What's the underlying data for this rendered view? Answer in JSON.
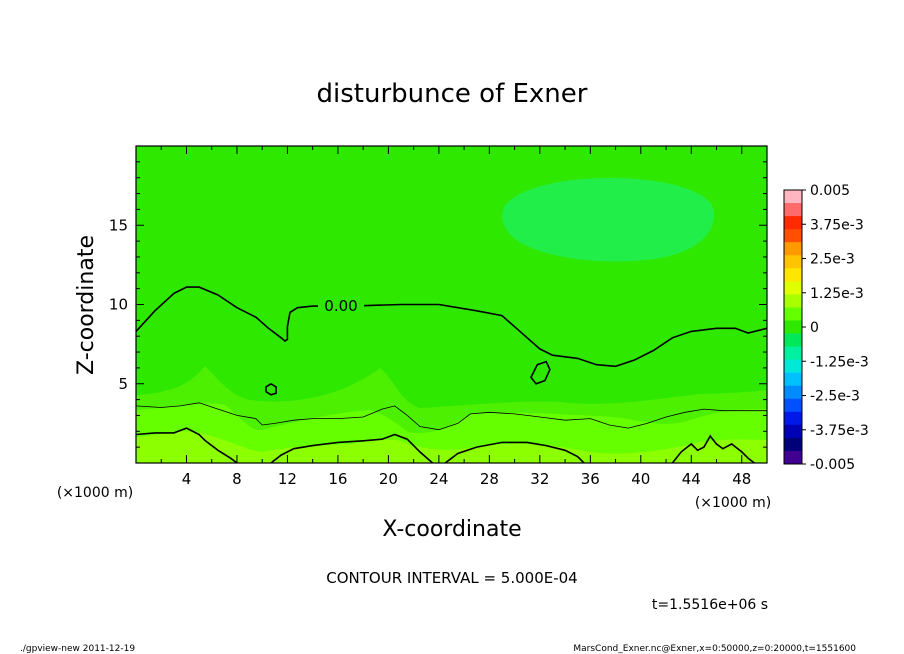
{
  "chart_data": {
    "type": "heatmap",
    "title": "disturbunce of Exner",
    "xlabel": "X-coordinate",
    "ylabel": "Z-coordinate",
    "x_unit_label": "(×1000 m)",
    "y_unit_label": "(×1000 m)",
    "xlim": [
      0,
      50
    ],
    "ylim": [
      0,
      20
    ],
    "x_ticks": [
      4,
      8,
      12,
      16,
      20,
      24,
      28,
      32,
      36,
      40,
      44,
      48
    ],
    "y_ticks": [
      5,
      10,
      15
    ],
    "colorbar": {
      "labels": [
        "0.005",
        "3.75e-3",
        "2.5e-3",
        "1.25e-3",
        "0",
        "-1.25e-3",
        "-2.5e-3",
        "-3.75e-3",
        "-0.005"
      ],
      "colors": [
        "#ffb6c1",
        "#ff6a6a",
        "#ff2a00",
        "#ff5000",
        "#ff9900",
        "#ffc400",
        "#ffe600",
        "#e0ff00",
        "#a8ff00",
        "#66ff00",
        "#2ee800",
        "#00e85a",
        "#00f0a0",
        "#00e8d8",
        "#00c0ff",
        "#008cff",
        "#0050ff",
        "#0018e8",
        "#0000b4",
        "#000078",
        "#400090"
      ]
    },
    "contour_label": "0.00",
    "contours": [
      {
        "level": 0,
        "points": [
          [
            0,
            8.3
          ],
          [
            1.5,
            9.6
          ],
          [
            3,
            10.7
          ],
          [
            4,
            11.1
          ],
          [
            5,
            11.1
          ],
          [
            6.5,
            10.6
          ],
          [
            8,
            9.8
          ],
          [
            9.5,
            9.2
          ],
          [
            10.5,
            8.5
          ],
          [
            11.5,
            7.9
          ],
          [
            11.8,
            7.7
          ],
          [
            12,
            7.8
          ],
          [
            12,
            8.6
          ],
          [
            12.2,
            9.5
          ],
          [
            12.8,
            9.8
          ],
          [
            14,
            9.9
          ],
          [
            17,
            9.9
          ],
          [
            21,
            10
          ],
          [
            24,
            10
          ],
          [
            27,
            9.6
          ],
          [
            29,
            9.3
          ],
          [
            30,
            8.6
          ],
          [
            31,
            7.9
          ],
          [
            32,
            7.2
          ],
          [
            33,
            6.8
          ],
          [
            35,
            6.6
          ],
          [
            36.5,
            6.2
          ],
          [
            38,
            6.1
          ],
          [
            39.5,
            6.5
          ],
          [
            41,
            7.1
          ],
          [
            42.5,
            7.9
          ],
          [
            44,
            8.3
          ],
          [
            46,
            8.5
          ],
          [
            47.5,
            8.5
          ],
          [
            48.5,
            8.2
          ],
          [
            50,
            8.5
          ]
        ]
      },
      {
        "level": 0,
        "closed": true,
        "points": [
          [
            10.3,
            4.8
          ],
          [
            10.7,
            5.0
          ],
          [
            11.1,
            4.8
          ],
          [
            11.1,
            4.4
          ],
          [
            10.7,
            4.3
          ],
          [
            10.3,
            4.5
          ]
        ]
      },
      {
        "level": 0,
        "closed": true,
        "points": [
          [
            31.3,
            5.4
          ],
          [
            31.8,
            6.2
          ],
          [
            32.5,
            6.4
          ],
          [
            32.8,
            5.9
          ],
          [
            32.4,
            5.2
          ],
          [
            31.7,
            5.0
          ]
        ]
      },
      {
        "level": 0.0005,
        "points": [
          [
            0,
            3.6
          ],
          [
            2,
            3.5
          ],
          [
            3.5,
            3.6
          ],
          [
            5,
            3.8
          ],
          [
            6.5,
            3.4
          ],
          [
            8,
            3.0
          ],
          [
            9.5,
            2.8
          ],
          [
            10,
            2.4
          ],
          [
            11,
            2.5
          ],
          [
            12.5,
            2.7
          ],
          [
            14,
            2.8
          ],
          [
            16,
            2.8
          ],
          [
            18,
            2.9
          ],
          [
            19.5,
            3.4
          ],
          [
            20.5,
            3.6
          ],
          [
            21.5,
            3.0
          ],
          [
            22.5,
            2.3
          ],
          [
            24,
            2.1
          ],
          [
            25.5,
            2.5
          ],
          [
            26.5,
            3.1
          ],
          [
            28,
            3.2
          ],
          [
            30,
            3.1
          ],
          [
            32,
            2.9
          ],
          [
            34,
            2.7
          ],
          [
            36,
            2.8
          ],
          [
            37.5,
            2.4
          ],
          [
            39,
            2.2
          ],
          [
            40.5,
            2.5
          ],
          [
            42,
            2.9
          ],
          [
            43.5,
            3.2
          ],
          [
            45,
            3.4
          ],
          [
            46.5,
            3.3
          ],
          [
            48,
            3.3
          ],
          [
            50,
            3.3
          ]
        ]
      },
      {
        "level": 0.001,
        "points": [
          [
            0,
            1.8
          ],
          [
            1.5,
            1.9
          ],
          [
            3,
            1.9
          ],
          [
            4,
            2.2
          ],
          [
            5,
            1.8
          ],
          [
            5.5,
            1.4
          ],
          [
            6.5,
            0.8
          ],
          [
            7.5,
            0.3
          ],
          [
            8,
            0
          ]
        ]
      },
      {
        "level": 0.001,
        "points": [
          [
            10.7,
            0
          ],
          [
            11.5,
            0.5
          ],
          [
            12.5,
            0.9
          ],
          [
            14,
            1.1
          ],
          [
            16,
            1.3
          ],
          [
            18,
            1.4
          ],
          [
            19.5,
            1.5
          ],
          [
            20.5,
            1.8
          ],
          [
            21.5,
            1.5
          ],
          [
            22.5,
            0.7
          ],
          [
            23.5,
            0
          ]
        ]
      },
      {
        "level": 0.001,
        "points": [
          [
            24.5,
            0
          ],
          [
            25.5,
            0.6
          ],
          [
            27,
            1.0
          ],
          [
            29,
            1.3
          ],
          [
            31,
            1.3
          ],
          [
            32.5,
            1.1
          ],
          [
            34,
            0.8
          ],
          [
            35,
            0.4
          ],
          [
            35.5,
            0
          ]
        ]
      },
      {
        "level": 0.001,
        "points": [
          [
            42.5,
            0
          ],
          [
            43.2,
            0.7
          ],
          [
            44,
            1.2
          ],
          [
            44.5,
            0.8
          ],
          [
            45,
            1.0
          ],
          [
            45.5,
            1.7
          ],
          [
            46,
            1.2
          ],
          [
            46.5,
            0.9
          ],
          [
            47.2,
            1.2
          ],
          [
            48,
            0.7
          ],
          [
            48.5,
            0.3
          ],
          [
            49,
            0
          ]
        ]
      }
    ],
    "contour_interval_text": "CONTOUR INTERVAL = 5.000E-04",
    "time_text": "t=1.5516e+06 s"
  },
  "footer": {
    "left": "./gpview-new  2011-12-19",
    "right": "MarsCond_Exner.nc@Exner,x=0:50000,z=0:20000,t=1551600"
  }
}
